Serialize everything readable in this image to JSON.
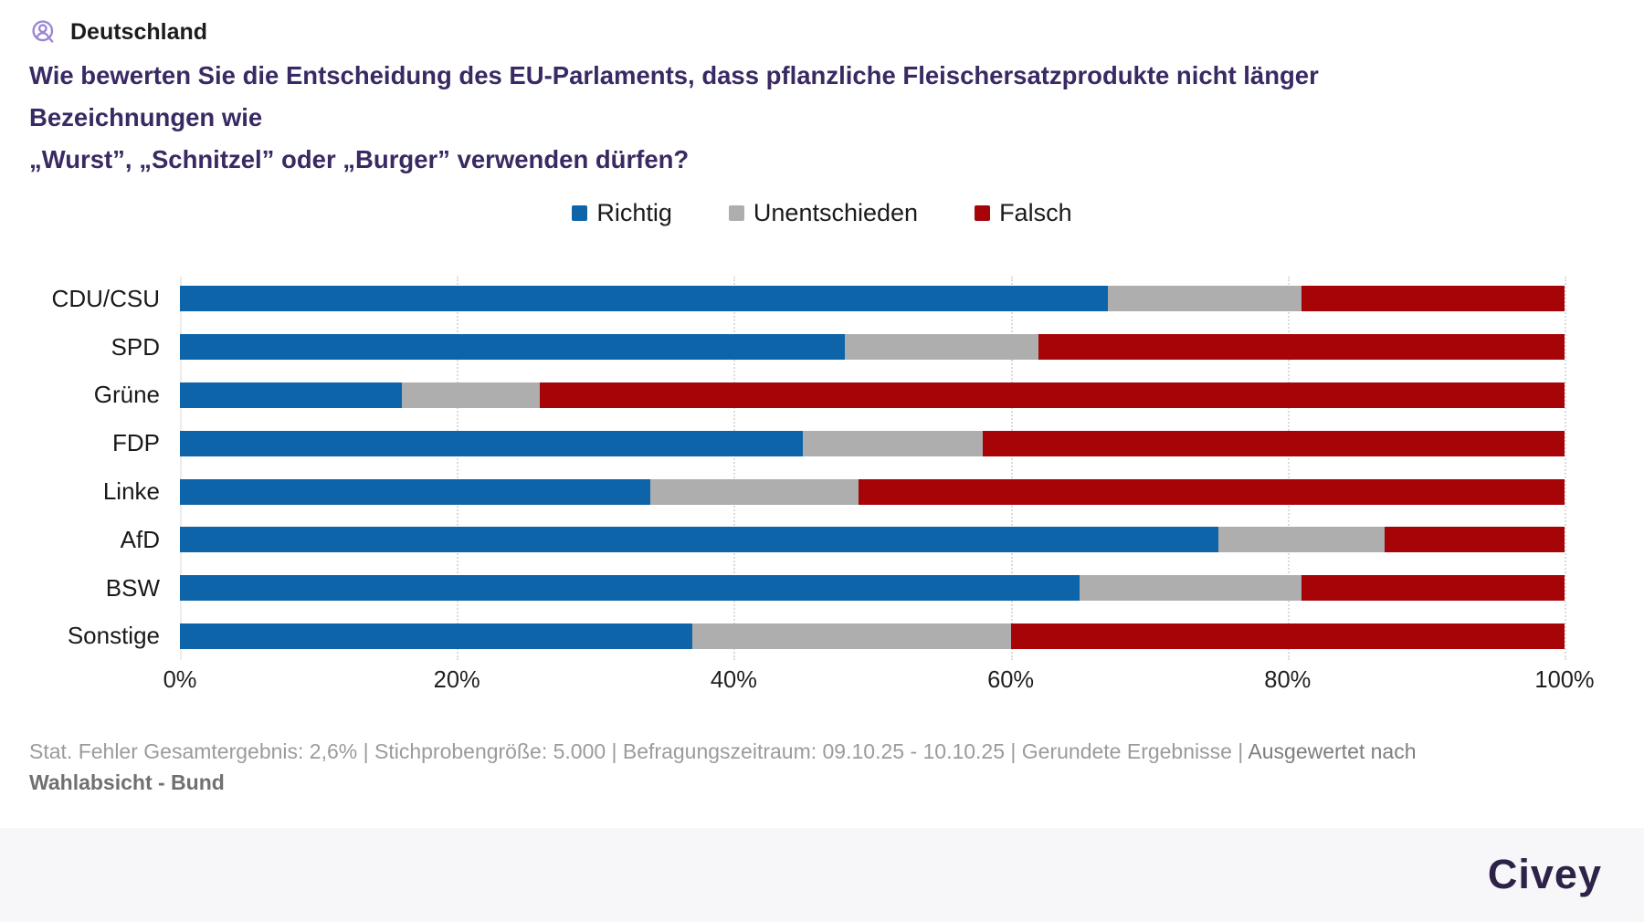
{
  "header": {
    "region_label": "Deutschland",
    "question_line1": "Wie bewerten Sie die Entscheidung des EU-Parlaments, dass pflanzliche Fleischersatzprodukte nicht länger Bezeichnungen wie",
    "question_line2": "„Wurst”, „Schnitzel” oder „Burger” verwenden dürfen?"
  },
  "chart_data": {
    "type": "bar",
    "orientation": "horizontal",
    "stacked": true,
    "categories": [
      "CDU/CSU",
      "SPD",
      "Grüne",
      "FDP",
      "Linke",
      "AfD",
      "BSW",
      "Sonstige"
    ],
    "series": [
      {
        "name": "Richtig",
        "color": "#0e64a8",
        "values": [
          67,
          48,
          16,
          45,
          34,
          75,
          65,
          37
        ]
      },
      {
        "name": "Unentschieden",
        "color": "#aeaeae",
        "values": [
          14,
          14,
          10,
          13,
          15,
          12,
          16,
          23
        ]
      },
      {
        "name": "Falsch",
        "color": "#a70408",
        "values": [
          19,
          38,
          74,
          42,
          51,
          13,
          19,
          40
        ]
      }
    ],
    "xlim": [
      0,
      100
    ],
    "x_ticks": [
      {
        "label": "0%",
        "pos": 0
      },
      {
        "label": "20%",
        "pos": 20
      },
      {
        "label": "40%",
        "pos": 40
      },
      {
        "label": "60%",
        "pos": 60
      },
      {
        "label": "80%",
        "pos": 80
      },
      {
        "label": "100%",
        "pos": 100
      }
    ],
    "grid": "vertical-dotted",
    "legend_position": "top-center"
  },
  "footer": {
    "stats": "Stat. Fehler Gesamtergebnis: 2,6% | Stichprobengröße: 5.000 | Befragungszeitraum: 09.10.25 - 10.10.25 | Gerundete Ergebnisse | ",
    "eval_prefix": " Ausgewertet nach ",
    "eval_bold": "Wahlabsicht - Bund"
  },
  "branding": {
    "logo_text": "Civey",
    "logo_color": "#2e2248",
    "icon_color": "#9c87d6"
  }
}
